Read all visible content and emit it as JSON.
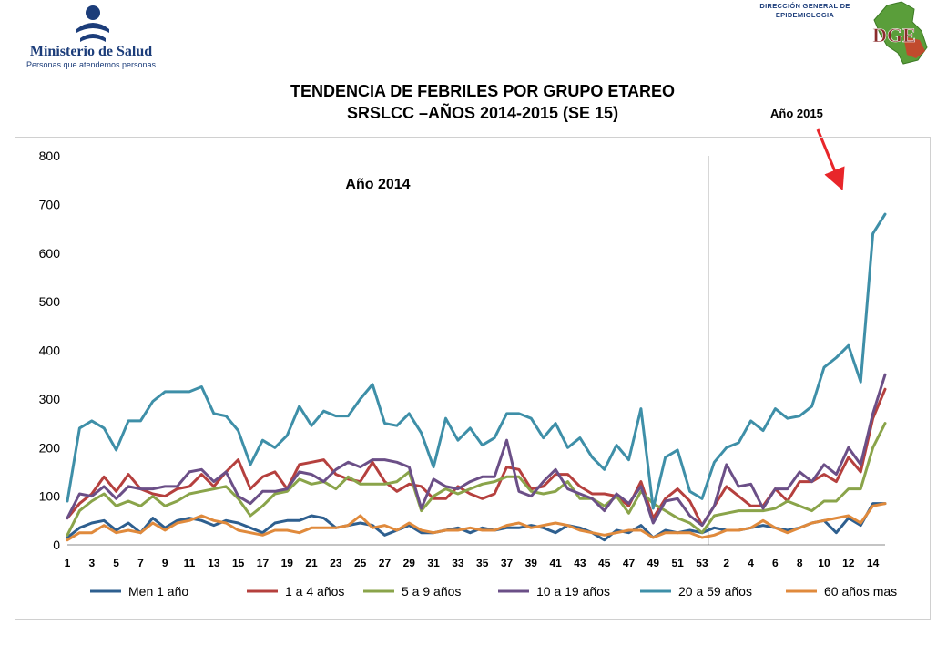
{
  "header": {
    "ministry_name": "Ministerio de Salud",
    "ministry_slogan": "Personas que atendemos personas",
    "dge_line1": "DIRECCIÓN GENERAL DE",
    "dge_line2": "EPIDEMIOLOGIA",
    "dge_logo_text": "DGE",
    "colors": {
      "ministry": "#1c3d7a",
      "dge_map": "#5a9e3a"
    }
  },
  "title_line1": "TENDENCIA DE FEBRILES POR GRUPO ETAREO",
  "title_line2": "SRSLCC –AÑOS 2014-2015 (SE 15)",
  "chart_data": {
    "type": "line",
    "x": [
      1,
      2,
      3,
      4,
      5,
      6,
      7,
      8,
      9,
      10,
      11,
      12,
      13,
      14,
      15,
      16,
      17,
      18,
      19,
      20,
      21,
      22,
      23,
      24,
      25,
      26,
      27,
      28,
      29,
      30,
      31,
      32,
      33,
      34,
      35,
      36,
      37,
      38,
      39,
      40,
      41,
      42,
      43,
      44,
      45,
      46,
      47,
      48,
      49,
      50,
      51,
      52,
      53,
      1,
      2,
      3,
      4,
      5,
      6,
      7,
      8,
      9,
      10,
      11,
      12,
      13,
      14,
      15
    ],
    "tick_labels": [
      "1",
      "3",
      "5",
      "7",
      "9",
      "11",
      "13",
      "15",
      "17",
      "19",
      "21",
      "23",
      "25",
      "27",
      "29",
      "31",
      "33",
      "35",
      "37",
      "39",
      "41",
      "43",
      "45",
      "47",
      "49",
      "51",
      "53",
      "2",
      "4",
      "6",
      "8",
      "10",
      "12",
      "14"
    ],
    "ylim": [
      0,
      800
    ],
    "yticks": [
      0,
      100,
      200,
      300,
      400,
      500,
      600,
      700,
      800
    ],
    "grid": false,
    "legend_position": "bottom",
    "annotations": [
      {
        "text": "Año 2014"
      },
      {
        "text": "Año 2015",
        "arrow_color": "#e8262a"
      }
    ],
    "series": [
      {
        "name": "Men 1 año",
        "color": "#2e5f8f",
        "values": [
          15,
          35,
          45,
          50,
          30,
          45,
          25,
          55,
          35,
          50,
          55,
          50,
          40,
          50,
          45,
          35,
          25,
          45,
          50,
          50,
          60,
          55,
          35,
          40,
          45,
          40,
          20,
          30,
          40,
          25,
          25,
          30,
          35,
          25,
          35,
          30,
          35,
          35,
          40,
          35,
          25,
          40,
          35,
          25,
          10,
          30,
          25,
          40,
          15,
          30,
          25,
          30,
          25,
          35,
          30,
          30,
          35,
          40,
          35,
          30,
          35,
          45,
          50,
          25,
          55,
          40,
          85,
          85
        ]
      },
      {
        "name": "1 a 4 años",
        "color": "#b5403e",
        "values": [
          55,
          85,
          105,
          140,
          110,
          145,
          115,
          105,
          100,
          115,
          120,
          145,
          120,
          150,
          175,
          115,
          140,
          150,
          115,
          165,
          170,
          175,
          145,
          135,
          130,
          170,
          130,
          110,
          125,
          120,
          95,
          95,
          120,
          105,
          95,
          105,
          160,
          155,
          115,
          120,
          145,
          145,
          120,
          105,
          105,
          100,
          80,
          130,
          55,
          95,
          115,
          90,
          40,
          80,
          120,
          100,
          80,
          80,
          115,
          90,
          130,
          130,
          145,
          130,
          180,
          150,
          260,
          320
        ]
      },
      {
        "name": "5 a 9 años",
        "color": "#8aa44a",
        "values": [
          20,
          70,
          90,
          105,
          80,
          90,
          80,
          100,
          80,
          90,
          105,
          110,
          115,
          120,
          95,
          60,
          80,
          105,
          110,
          135,
          125,
          130,
          115,
          140,
          125,
          125,
          125,
          130,
          150,
          70,
          100,
          115,
          105,
          115,
          125,
          130,
          140,
          140,
          110,
          105,
          110,
          130,
          95,
          95,
          80,
          100,
          65,
          110,
          85,
          70,
          55,
          45,
          25,
          60,
          65,
          70,
          70,
          70,
          75,
          90,
          80,
          70,
          90,
          90,
          115,
          115,
          200,
          250
        ]
      },
      {
        "name": "10 a 19 años",
        "color": "#6b4f87",
        "values": [
          55,
          105,
          100,
          120,
          95,
          120,
          115,
          115,
          120,
          120,
          150,
          155,
          130,
          150,
          100,
          85,
          110,
          110,
          115,
          150,
          145,
          130,
          155,
          170,
          160,
          175,
          175,
          170,
          160,
          75,
          135,
          120,
          115,
          130,
          140,
          140,
          215,
          110,
          100,
          130,
          155,
          115,
          105,
          95,
          70,
          105,
          85,
          120,
          45,
          90,
          95,
          60,
          40,
          80,
          165,
          120,
          125,
          75,
          115,
          115,
          150,
          130,
          165,
          145,
          200,
          165,
          270,
          350
        ]
      },
      {
        "name": "20 a 59 años",
        "color": "#3e8fa8",
        "values": [
          90,
          240,
          255,
          240,
          195,
          255,
          255,
          295,
          315,
          315,
          315,
          325,
          270,
          265,
          235,
          165,
          215,
          200,
          225,
          285,
          245,
          275,
          265,
          265,
          300,
          330,
          250,
          245,
          270,
          230,
          160,
          260,
          215,
          240,
          205,
          220,
          270,
          270,
          260,
          220,
          250,
          200,
          220,
          180,
          155,
          205,
          175,
          280,
          75,
          180,
          195,
          110,
          95,
          170,
          200,
          210,
          255,
          235,
          280,
          260,
          265,
          285,
          365,
          385,
          410,
          335,
          640,
          680
        ]
      },
      {
        "name": "60 años mas",
        "color": "#e08a3c",
        "values": [
          10,
          25,
          25,
          40,
          25,
          30,
          25,
          45,
          30,
          45,
          50,
          60,
          50,
          45,
          30,
          25,
          20,
          30,
          30,
          25,
          35,
          35,
          35,
          40,
          60,
          35,
          40,
          30,
          45,
          30,
          25,
          30,
          30,
          35,
          30,
          30,
          40,
          45,
          35,
          40,
          45,
          40,
          30,
          25,
          20,
          25,
          30,
          30,
          15,
          25,
          25,
          25,
          15,
          20,
          30,
          30,
          35,
          50,
          35,
          25,
          35,
          45,
          50,
          55,
          60,
          45,
          80,
          85
        ]
      }
    ]
  }
}
